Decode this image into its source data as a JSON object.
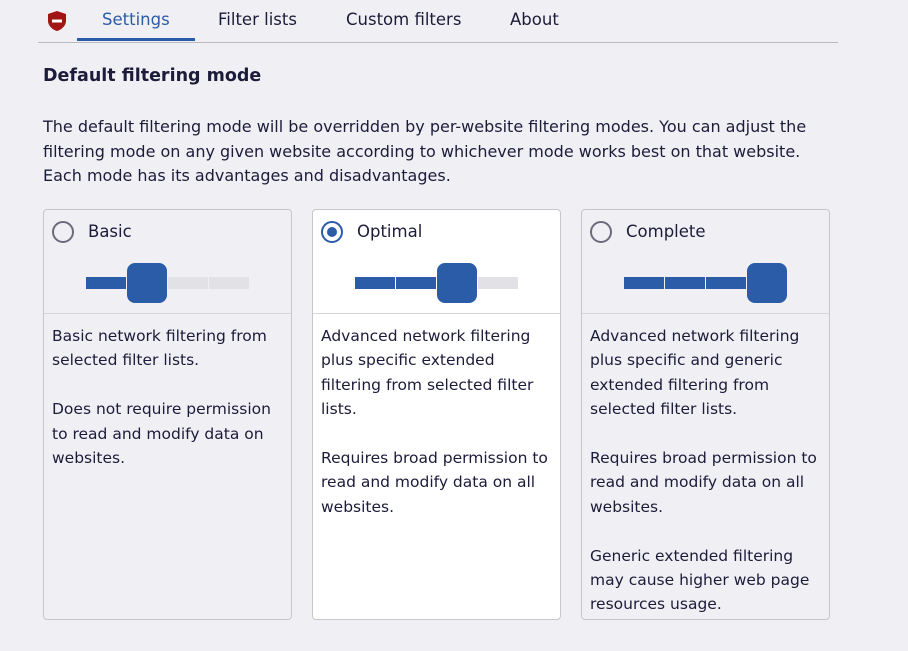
{
  "nav": {
    "tabs": [
      {
        "label": "Settings",
        "active": true
      },
      {
        "label": "Filter lists"
      },
      {
        "label": "Custom filters"
      },
      {
        "label": "About"
      }
    ]
  },
  "section": {
    "title": "Default filtering mode",
    "description": "The default filtering mode will be overridden by per-website filtering modes. You can adjust the filtering mode on any given website according to whichever mode works best on that website. Each mode has its advantages and disadvantages."
  },
  "modes": [
    {
      "name": "Basic",
      "selected": false,
      "level": 1,
      "paragraphs": [
        "Basic network filtering from selected filter lists.",
        "Does not require permission to read and modify data on websites."
      ]
    },
    {
      "name": "Optimal",
      "selected": true,
      "level": 2,
      "paragraphs": [
        "Advanced network filtering plus specific extended filtering from selected filter lists.",
        "Requires broad permission to read and modify data on all websites."
      ]
    },
    {
      "name": "Complete",
      "selected": false,
      "level": 3,
      "paragraphs": [
        "Advanced network filtering plus specific and generic extended filtering from selected filter lists.",
        "Requires broad permission to read and modify data on all websites.",
        "Generic extended filtering may cause higher web page resources usage."
      ]
    }
  ],
  "colors": {
    "accent": "#2a5ca8",
    "logo": "#a31515"
  }
}
